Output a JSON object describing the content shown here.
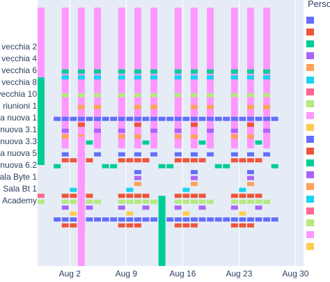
{
  "chart_data": {
    "type": "gantt",
    "title": "",
    "xlabel": "",
    "ylabel": "",
    "legend_title": "Perso",
    "x_ticks": [
      "Aug 2",
      "Aug 9",
      "Aug 16",
      "Aug 23",
      "Aug 30"
    ],
    "x_tick_dates": [
      "2021-08-02",
      "2021-08-09",
      "2021-08-16",
      "2021-08-23",
      "2021-08-30"
    ],
    "xlim": [
      "2021-07-29",
      "2021-08-31"
    ],
    "y_categories": [
      "vecchia 2",
      "vecchia 4",
      "vecchia 6",
      "vecchia 8",
      "vecchia 10",
      "riunioni 1",
      "a nuova 1",
      "nuova 3.1",
      "nuova 3.3",
      "a nuova 5",
      "nuova 6.2",
      "ala Byte 1",
      "Sala Bt 1",
      "Academy"
    ],
    "legend_colors": [
      "#636efa",
      "#ef553b",
      "#00cc96",
      "#ab63fa",
      "#ffa15a",
      "#19d3f3",
      "#ff6692",
      "#b6e880",
      "#ff97ff",
      "#fecb52",
      "#636efa",
      "#ef553b",
      "#00cc96",
      "#ab63fa",
      "#ffa15a",
      "#19d3f3",
      "#ff6692",
      "#b6e880",
      "#ff97ff",
      "#fecb52"
    ],
    "tall_bars": [
      {
        "start": "2021-07-29",
        "end": "2021-07-30",
        "row_top": -3.3,
        "row_bottom": 2.6,
        "color": "#ff97ff"
      },
      {
        "start": "2021-07-29",
        "end": "2021-07-30",
        "row_top": 2.6,
        "row_bottom": 10.0,
        "color": "#00cc96"
      },
      {
        "start": "2021-08-03",
        "end": "2021-08-04",
        "row_top": 7.6,
        "row_bottom": 21.4,
        "color": "#ff97ff"
      },
      {
        "start": "2021-08-13",
        "end": "2021-08-14",
        "row_top": 12.6,
        "row_bottom": 20.6,
        "color": "#00cc96"
      }
    ],
    "weekly_pattern": {
      "week_starts": [
        "2021-07-31",
        "2021-08-07",
        "2021-08-14",
        "2021-08-21"
      ],
      "day_offsets": [
        0,
        2,
        4,
        6
      ],
      "pink_bar": {
        "row_top": -3.3,
        "row_bottom": 8.6,
        "color": "#ff97ff",
        "day_offsets": [
          1,
          3,
          5
        ]
      },
      "blocks": [
        {
          "row": 2.1,
          "color": "#00cc96",
          "day_offsets": [
            1,
            3,
            5
          ]
        },
        {
          "row": 2.6,
          "color": "#19d3f3",
          "day_offsets": [
            1,
            3,
            5
          ]
        },
        {
          "row": 4.1,
          "color": "#b6e880",
          "day_offsets": [
            1,
            3,
            5
          ]
        },
        {
          "row": 5.1,
          "color": "#ffa15a",
          "day_offsets": [
            3,
            5
          ]
        },
        {
          "row": 6.1,
          "color": "#636efa",
          "day_offsets": [
            0,
            1,
            2,
            3,
            4,
            5,
            6
          ]
        },
        {
          "row": 6.6,
          "color": "#ef553b",
          "day_offsets": [
            3
          ]
        },
        {
          "row": 7.1,
          "color": "#ab63fa",
          "day_offsets": [
            1,
            5
          ]
        },
        {
          "row": 7.6,
          "color": "#ffa15a",
          "day_offsets": [
            1,
            3
          ]
        },
        {
          "row": 8.1,
          "color": "#00cc96",
          "day_offsets": [
            4
          ]
        },
        {
          "row": 9.1,
          "color": "#636efa",
          "day_offsets": [
            1,
            3,
            5
          ]
        },
        {
          "row": 9.6,
          "color": "#ef553b",
          "day_offsets": [
            1,
            2,
            3,
            4
          ]
        },
        {
          "row": 10.1,
          "color": "#00cc96",
          "day_offsets": [
            0,
            6
          ]
        },
        {
          "row": 10.6,
          "color": "#636efa",
          "day_offsets": [
            3
          ]
        },
        {
          "row": 11.1,
          "color": "#ab63fa",
          "day_offsets": [
            3
          ]
        },
        {
          "row": 11.6,
          "color": "#ffa15a",
          "day_offsets": [
            3
          ]
        },
        {
          "row": 12.1,
          "color": "#19d3f3",
          "day_offsets": [
            2
          ]
        },
        {
          "row": 12.6,
          "color": "#ef553b",
          "day_offsets": [
            1,
            2,
            3,
            4
          ]
        },
        {
          "row": 13.1,
          "color": "#b6e880",
          "day_offsets": [
            1,
            2,
            3,
            4,
            5
          ]
        },
        {
          "row": 13.6,
          "color": "#ab63fa",
          "day_offsets": [
            1,
            4
          ]
        },
        {
          "row": 14.1,
          "color": "#fecb52",
          "day_offsets": [
            2
          ]
        },
        {
          "row": 14.6,
          "color": "#636efa",
          "day_offsets": [
            0,
            1,
            2,
            3,
            4,
            5,
            6
          ]
        },
        {
          "row": 15.1,
          "color": "#ef553b",
          "day_offsets": [
            1,
            2,
            3
          ]
        }
      ]
    },
    "extra_blocks": [
      {
        "start": "2021-07-29",
        "end": "2021-07-30",
        "row": 12.6,
        "color": "#ff6692"
      },
      {
        "start": "2021-07-29",
        "end": "2021-07-30",
        "row": 13.1,
        "color": "#b6e880"
      }
    ],
    "grid": true,
    "legend_placement": "right",
    "colors": {
      "plot_bg": "#e5ecf6",
      "grid": "#ffffff",
      "text": "#2a3f5f"
    }
  }
}
